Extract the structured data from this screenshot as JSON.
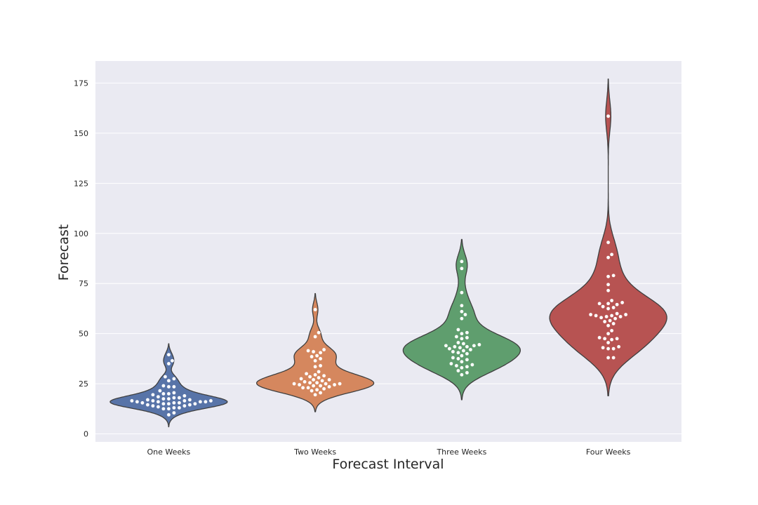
{
  "chart_data": {
    "type": "violin",
    "title": "",
    "xlabel": "Forecast Interval",
    "ylabel": "Forecast",
    "ylim": [
      -4,
      186
    ],
    "yticks": [
      "0",
      "25",
      "50",
      "75",
      "100",
      "125",
      "150",
      "175"
    ],
    "grid": true,
    "legend": "none",
    "categories": [
      "One Weeks",
      "Two Weeks",
      "Three Weeks",
      "Four Weeks"
    ],
    "colors": [
      "#5874a8",
      "#d5875e",
      "#5f9e6e",
      "#b75352"
    ],
    "background": "#eaeaf2",
    "violin_range": [
      [
        3.5,
        45
      ],
      [
        11,
        70
      ],
      [
        17,
        97
      ],
      [
        19,
        177
      ]
    ],
    "series": [
      {
        "name": "One Weeks",
        "values": [
          9.5,
          10.5,
          12.5,
          12.5,
          13,
          13,
          13.5,
          14,
          14,
          14.5,
          14.5,
          15,
          15,
          15,
          15.5,
          15.5,
          15.5,
          16,
          16,
          16,
          16,
          16.5,
          16.5,
          16.5,
          16.5,
          17,
          17,
          17.5,
          17.5,
          18,
          18,
          18.5,
          19,
          19.5,
          20,
          20,
          20.5,
          21.5,
          23.5,
          23.5,
          24,
          26.5,
          27.5,
          28.5,
          35,
          36.5,
          39.5
        ]
      },
      {
        "name": "Two Weeks",
        "values": [
          19.5,
          20.5,
          21.5,
          22,
          22.5,
          23,
          23,
          23.5,
          24,
          24,
          24.5,
          24.5,
          25,
          25,
          25,
          25.5,
          25.5,
          26,
          26.5,
          27,
          27,
          27.5,
          28,
          28.5,
          29,
          29.5,
          30,
          31,
          33.5,
          34,
          36.5,
          37.5,
          38.5,
          39,
          40.5,
          41,
          41.5,
          42,
          48.5,
          50.5,
          62
        ]
      },
      {
        "name": "Three Weeks",
        "values": [
          29.5,
          30.5,
          31.5,
          33,
          33.5,
          34,
          34.5,
          35,
          36,
          37,
          37.5,
          38,
          39,
          40,
          40.5,
          41,
          41.5,
          42,
          42.5,
          43,
          43.5,
          43.5,
          44,
          44,
          44.5,
          45,
          45.5,
          47.5,
          48,
          48.5,
          50,
          50.5,
          52,
          57.5,
          59.5,
          61,
          64,
          70.5,
          82.5,
          86
        ]
      },
      {
        "name": "Four Weeks",
        "values": [
          38,
          38,
          42.5,
          42.5,
          43,
          43.5,
          45.5,
          47,
          47.5,
          47.5,
          48,
          50,
          51.5,
          54,
          55,
          56,
          56.5,
          57.5,
          58,
          58.5,
          58.5,
          59,
          59,
          59.5,
          59.5,
          60,
          62.5,
          63,
          63.5,
          64.5,
          65,
          65,
          65.5,
          66.5,
          71.5,
          74.5,
          78.5,
          79,
          88,
          89.5,
          95.5,
          158.5
        ]
      }
    ]
  }
}
